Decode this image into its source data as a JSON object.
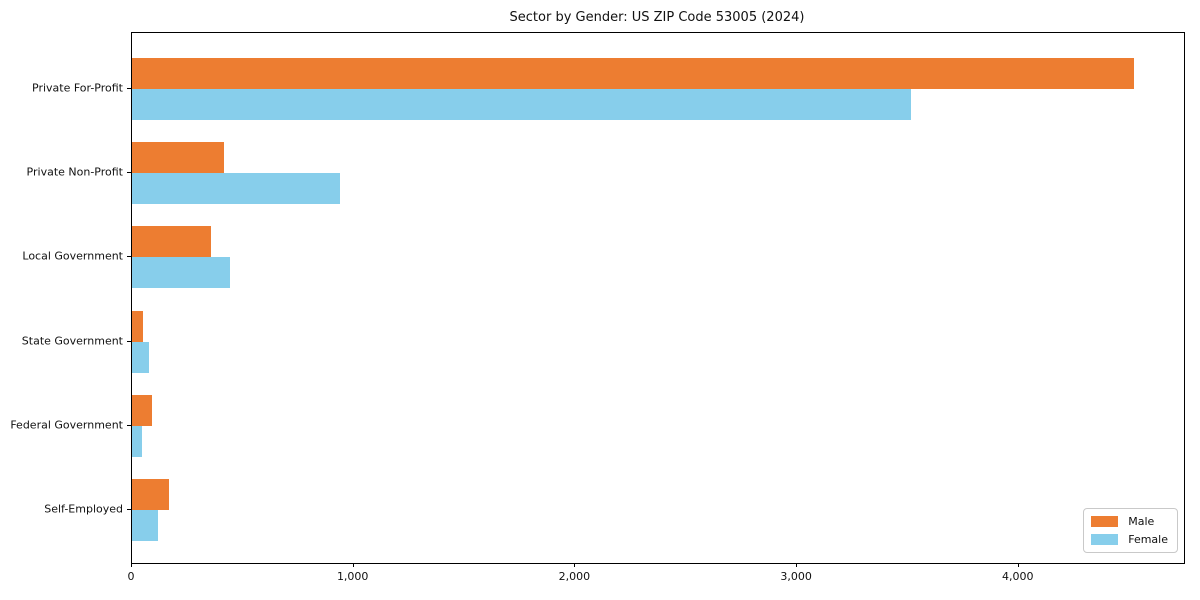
{
  "chart_data": {
    "type": "bar",
    "orientation": "horizontal",
    "title": "Sector by Gender: US ZIP Code 53005 (2024)",
    "categories": [
      "Private For-Profit",
      "Private Non-Profit",
      "Local Government",
      "State Government",
      "Federal Government",
      "Self-Employed"
    ],
    "series": [
      {
        "name": "Male",
        "color": "#ed7d31",
        "values": [
          4520,
          415,
          355,
          48,
          89,
          168
        ]
      },
      {
        "name": "Female",
        "color": "#87ceeb",
        "values": [
          3515,
          940,
          440,
          78,
          44,
          119
        ]
      }
    ],
    "xlabel": "",
    "ylabel": "",
    "xlim": [
      0,
      4745
    ],
    "x_ticks": [
      0,
      1000,
      2000,
      3000,
      4000
    ],
    "x_tick_labels": [
      "0",
      "1,000",
      "2,000",
      "3,000",
      "4,000"
    ],
    "grid": false,
    "legend": {
      "position": "lower right"
    },
    "frame_color": "#000000",
    "text_color": "#111111",
    "background_color": "#ffffff"
  }
}
